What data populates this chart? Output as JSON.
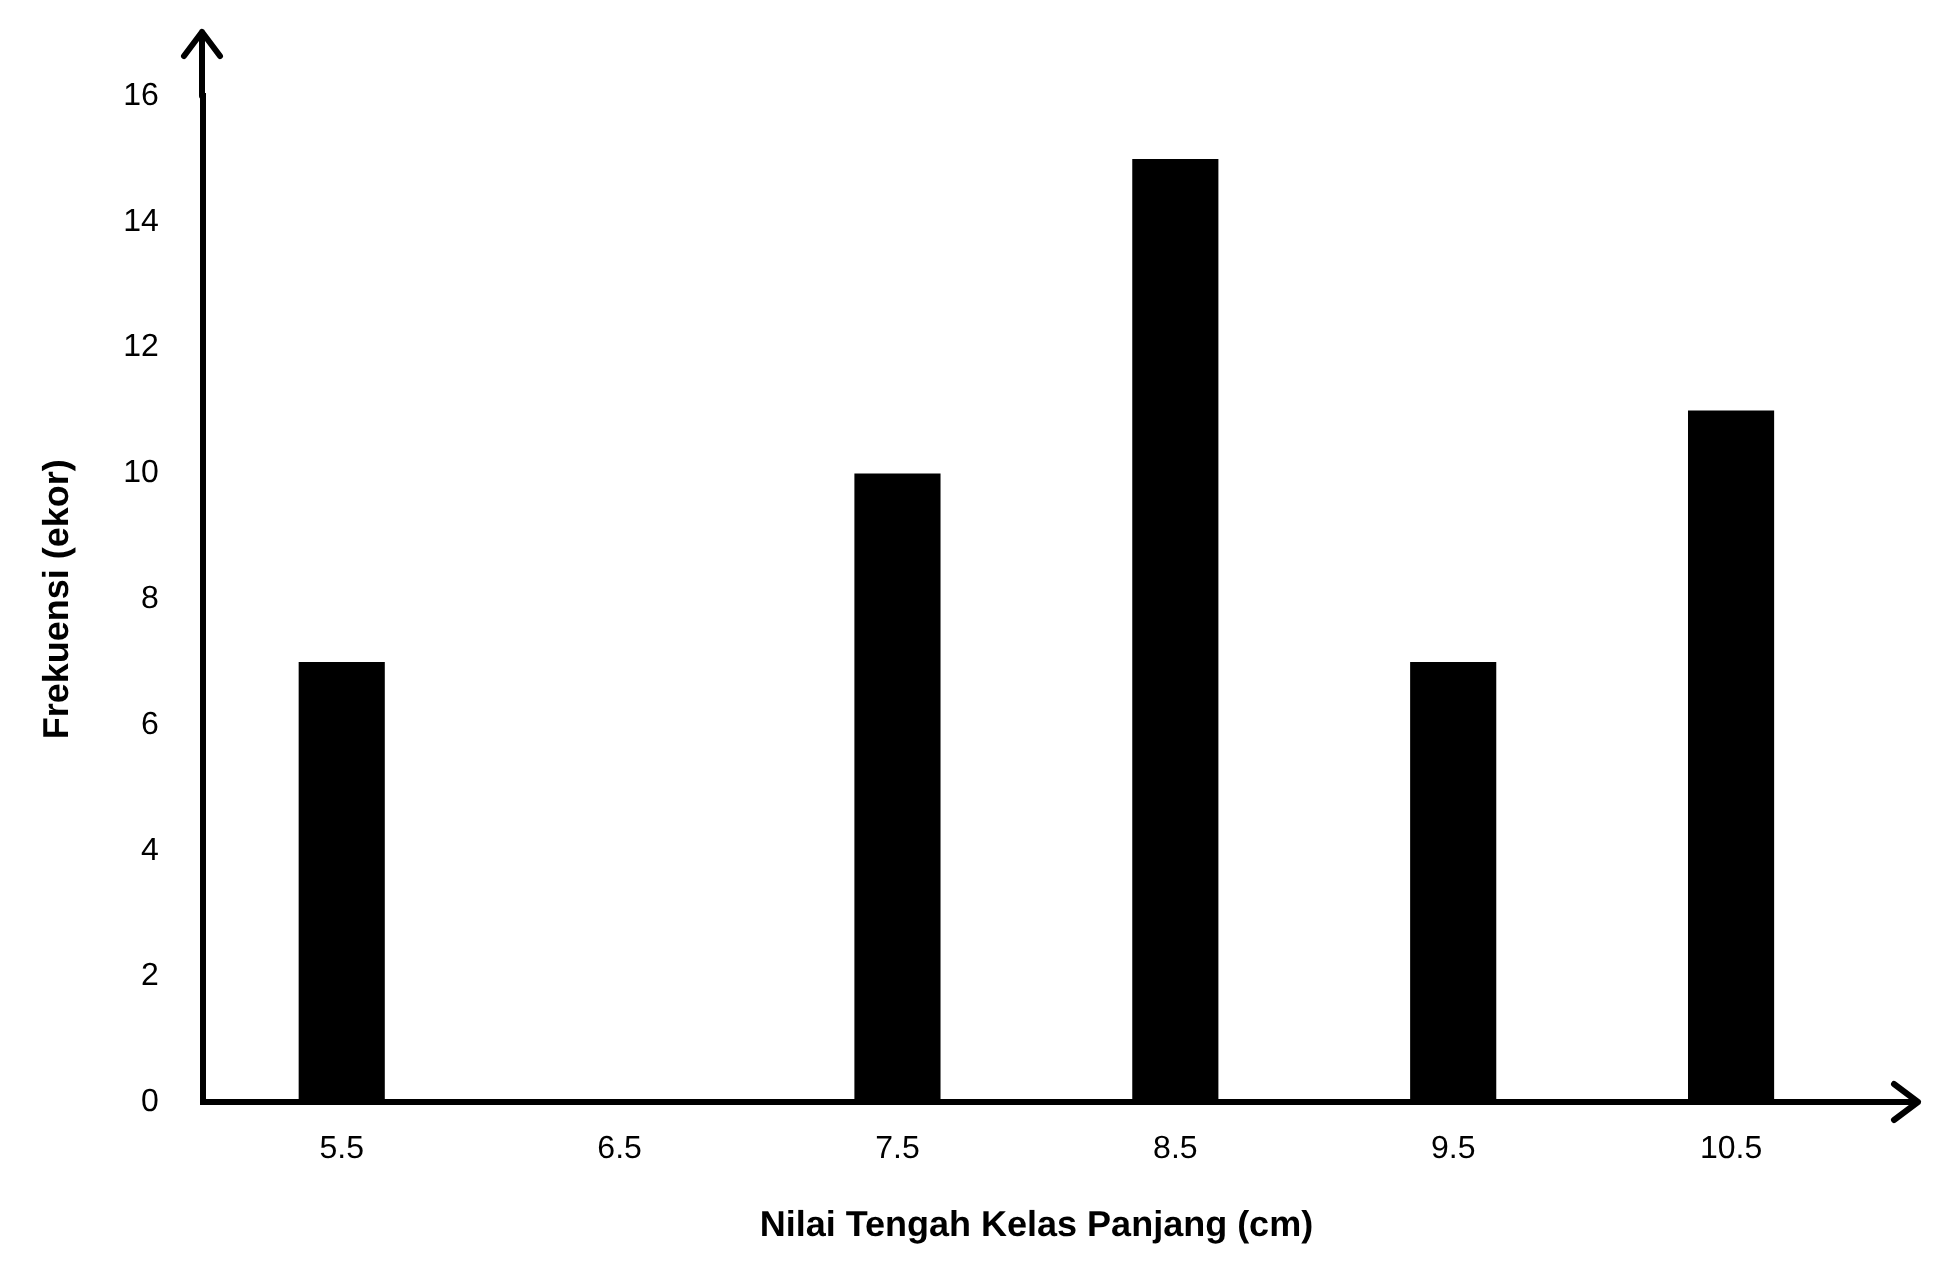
{
  "chart_data": {
    "type": "bar",
    "xlabel": "Nilai Tengah Kelas Panjang (cm)",
    "ylabel": "Frekuensi (ekor)",
    "categories": [
      "5.5",
      "6.5",
      "7.5",
      "8.5",
      "9.5",
      "10.5"
    ],
    "values": [
      7,
      0,
      10,
      15,
      7,
      11
    ],
    "color": "#000000",
    "ylim": [
      0,
      16
    ],
    "yticks": [
      0,
      2,
      4,
      6,
      8,
      10,
      12,
      14,
      16
    ],
    "grid": false,
    "legend": false
  }
}
